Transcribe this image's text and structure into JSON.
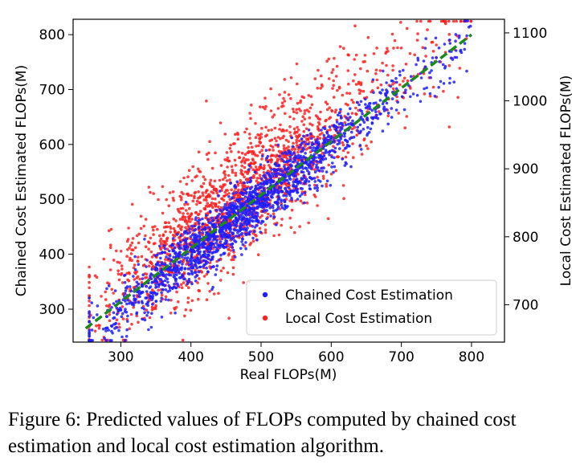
{
  "caption": "Figure 6: Predicted values of FLOPs computed by chained cost estimation and local cost estimation algorithm.",
  "chart_data": {
    "type": "scatter",
    "xlabel": "Real FLOPs(M)",
    "ylabel_left": "Chained Cost Estimated FLOPs(M)",
    "ylabel_right": "Local Cost Estimated FLOPs(M)",
    "xlim": [
      232,
      847
    ],
    "ylim_left": [
      240,
      828
    ],
    "ylim_right": [
      645,
      1120
    ],
    "x_ticks": [
      300,
      400,
      500,
      600,
      700,
      800
    ],
    "y_ticks_left": [
      300,
      400,
      500,
      600,
      700,
      800
    ],
    "y_ticks_right": [
      700,
      800,
      900,
      1000,
      1100
    ],
    "grid": false,
    "legend_position": "lower-right",
    "series": [
      {
        "name": "Chained Cost Estimation",
        "color": "#1f1fff",
        "axis": "left",
        "trend": "y = x, std 28, clipped",
        "points_approx": 1800
      },
      {
        "name": "Local Cost Estimation",
        "color": "#ff2020",
        "axis": "right",
        "trend": "y = 0.8*x + 485, std 45, clipped",
        "points_approx": 1800
      }
    ],
    "reference_line": {
      "type": "dashed",
      "color": "#1a8a1a",
      "from": [
        250,
        265
      ],
      "to": [
        800,
        800
      ]
    }
  }
}
